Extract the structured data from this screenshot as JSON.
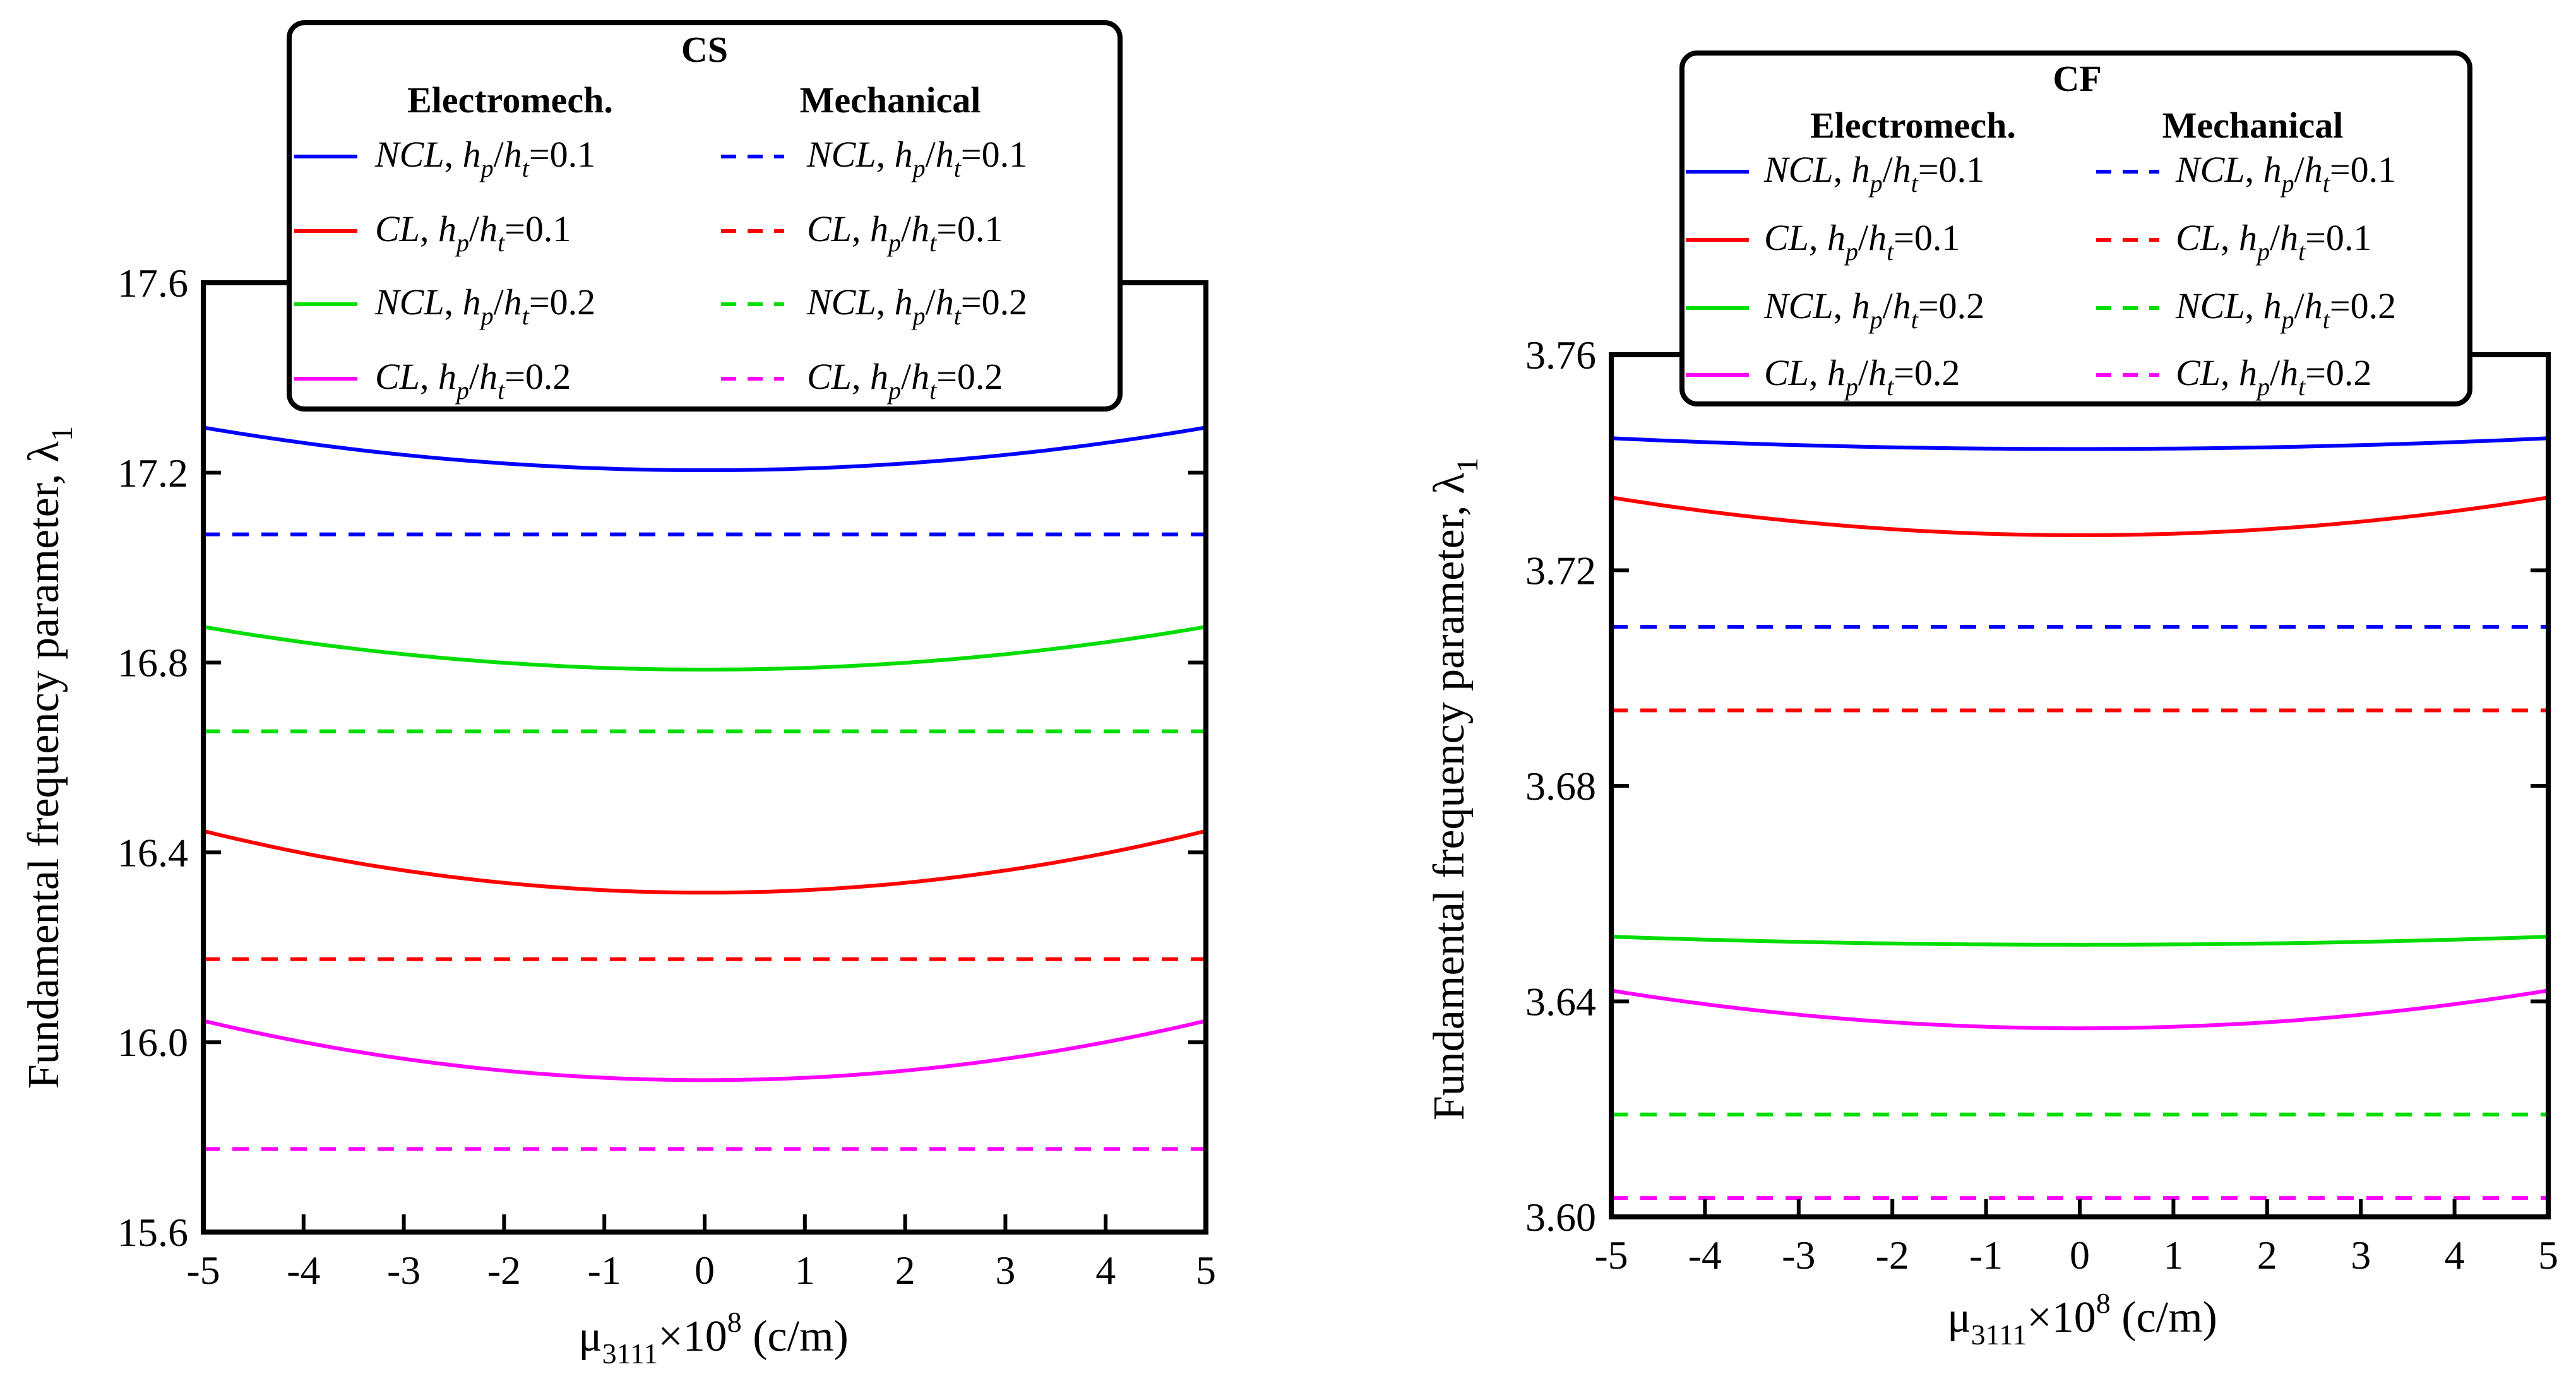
{
  "chart_data": [
    {
      "type": "line",
      "title": "CS",
      "xlabel_main": "μ",
      "xlabel_sub": "3111",
      "xlabel_mid": "×10",
      "xlabel_sup": "8",
      "xlabel_unit": " (c/m)",
      "ylabel_main": "Fundamental frequency parameter, λ",
      "ylabel_sub": "1",
      "xlim": [
        -5,
        5
      ],
      "ylim": [
        15.6,
        17.6
      ],
      "xticks": [
        "-5",
        "-4",
        "-3",
        "-2",
        "-1",
        "0",
        "1",
        "2",
        "3",
        "4",
        "5"
      ],
      "yticks": [
        "15.6",
        "16.0",
        "16.4",
        "16.8",
        "17.2",
        "17.6"
      ],
      "legend": {
        "col_left": "Electromech.",
        "col_right": "Mechanical",
        "entries": [
          {
            "model": "NCL",
            "ratio": "=0.1"
          },
          {
            "model": "CL",
            "ratio": "=0.1"
          },
          {
            "model": "NCL",
            "ratio": "=0.2"
          },
          {
            "model": "CL",
            "ratio": "=0.2"
          }
        ]
      },
      "series": [
        {
          "name": "Electromech. NCL, hp/ht=0.1",
          "color": "#0000ff",
          "style": "solid",
          "curve": {
            "center": 17.205,
            "end": 17.295
          }
        },
        {
          "name": "Mechanical NCL, hp/ht=0.1",
          "color": "#0000ff",
          "style": "dashed",
          "value": 17.07
        },
        {
          "name": "Electromech. NCL, hp/ht=0.2",
          "color": "#00dd00",
          "style": "solid",
          "curve": {
            "center": 16.785,
            "end": 16.875
          }
        },
        {
          "name": "Mechanical NCL, hp/ht=0.2",
          "color": "#00dd00",
          "style": "dashed",
          "value": 16.655
        },
        {
          "name": "Electromech. CL, hp/ht=0.1",
          "color": "#ff0000",
          "style": "solid",
          "curve": {
            "center": 16.315,
            "end": 16.445
          }
        },
        {
          "name": "Mechanical CL, hp/ht=0.1",
          "color": "#ff0000",
          "style": "dashed",
          "value": 16.175
        },
        {
          "name": "Electromech. CL, hp/ht=0.2",
          "color": "#ff00ff",
          "style": "solid",
          "curve": {
            "center": 15.92,
            "end": 16.045
          }
        },
        {
          "name": "Mechanical CL, hp/ht=0.2",
          "color": "#ff00ff",
          "style": "dashed",
          "value": 15.775
        }
      ]
    },
    {
      "type": "line",
      "title": "CF",
      "xlabel_main": "μ",
      "xlabel_sub": "3111",
      "xlabel_mid": "×10",
      "xlabel_sup": "8",
      "xlabel_unit": " (c/m)",
      "ylabel_main": "Fundamental frequency parameter, λ",
      "ylabel_sub": "1",
      "xlim": [
        -5,
        5
      ],
      "ylim": [
        3.6,
        3.76
      ],
      "xticks": [
        "-5",
        "-4",
        "-3",
        "-2",
        "-1",
        "0",
        "1",
        "2",
        "3",
        "4",
        "5"
      ],
      "yticks": [
        "3.60",
        "3.64",
        "3.68",
        "3.72",
        "3.76"
      ],
      "legend": {
        "col_left": "Electromech.",
        "col_right": "Mechanical",
        "entries": [
          {
            "model": "NCL",
            "ratio": "=0.1"
          },
          {
            "model": "CL",
            "ratio": "=0.1"
          },
          {
            "model": "NCL",
            "ratio": "=0.2"
          },
          {
            "model": "CL",
            "ratio": "=0.2"
          }
        ]
      },
      "series": [
        {
          "name": "Electromech. NCL, hp/ht=0.1",
          "color": "#0000ff",
          "style": "solid",
          "curve": {
            "center": 3.7425,
            "end": 3.7445
          }
        },
        {
          "name": "Electromech. CL, hp/ht=0.1",
          "color": "#ff0000",
          "style": "solid",
          "curve": {
            "center": 3.7265,
            "end": 3.7335
          }
        },
        {
          "name": "Mechanical NCL, hp/ht=0.1",
          "color": "#0000ff",
          "style": "dashed",
          "value": 3.7095
        },
        {
          "name": "Mechanical CL, hp/ht=0.1",
          "color": "#ff0000",
          "style": "dashed",
          "value": 3.694
        },
        {
          "name": "Electromech. NCL, hp/ht=0.2",
          "color": "#00dd00",
          "style": "solid",
          "curve": {
            "center": 3.6505,
            "end": 3.652
          }
        },
        {
          "name": "Electromech. CL, hp/ht=0.2",
          "color": "#ff00ff",
          "style": "solid",
          "curve": {
            "center": 3.635,
            "end": 3.642
          }
        },
        {
          "name": "Mechanical NCL, hp/ht=0.2",
          "color": "#00dd00",
          "style": "dashed",
          "value": 3.619
        },
        {
          "name": "Mechanical CL, hp/ht=0.2",
          "color": "#ff00ff",
          "style": "dashed",
          "value": 3.6035
        }
      ]
    }
  ]
}
